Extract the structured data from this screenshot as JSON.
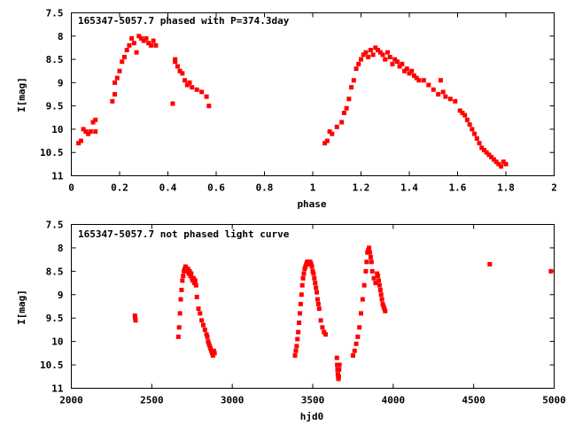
{
  "chart_data": [
    {
      "type": "scatter",
      "title": "165347-5057.7 phased with P=374.3day",
      "xlabel": "phase",
      "ylabel": "I[mag]",
      "xlim": [
        0,
        2
      ],
      "ylim": [
        11,
        7.5
      ],
      "y_inverted": true,
      "xticks": [
        "0",
        "0.2",
        "0.4",
        "0.6",
        "0.8",
        "1",
        "1.2",
        "1.4",
        "1.6",
        "1.8",
        "2"
      ],
      "yticks": [
        "7.5",
        "8",
        "8.5",
        "9",
        "9.5",
        "10",
        "10.5",
        "11"
      ],
      "marker_color": "#ff0000",
      "series": [
        {
          "x": [
            0.03,
            0.04,
            0.05,
            0.06,
            0.07,
            0.08,
            0.09,
            0.1,
            0.1,
            0.17,
            0.18,
            0.18,
            0.19,
            0.2,
            0.21,
            0.22,
            0.23,
            0.24,
            0.25,
            0.26,
            0.27,
            0.28,
            0.29,
            0.3,
            0.31,
            0.32,
            0.33,
            0.34,
            0.35,
            0.42,
            0.43,
            0.43,
            0.44,
            0.45,
            0.46,
            0.47,
            0.48,
            0.49,
            0.5,
            0.52,
            0.54,
            0.56,
            0.57,
            1.05,
            1.06,
            1.07,
            1.08,
            1.1,
            1.12,
            1.13,
            1.14,
            1.15,
            1.16,
            1.17,
            1.18,
            1.19,
            1.2,
            1.21,
            1.22,
            1.23,
            1.24,
            1.25,
            1.26,
            1.27,
            1.28,
            1.29,
            1.3,
            1.31,
            1.32,
            1.33,
            1.34,
            1.35,
            1.36,
            1.37,
            1.38,
            1.39,
            1.4,
            1.41,
            1.42,
            1.43,
            1.44,
            1.46,
            1.48,
            1.5,
            1.52,
            1.53,
            1.54,
            1.55,
            1.57,
            1.59,
            1.61,
            1.62,
            1.63,
            1.64,
            1.65,
            1.66,
            1.67,
            1.68,
            1.69,
            1.7,
            1.71,
            1.72,
            1.73,
            1.74,
            1.75,
            1.76,
            1.77,
            1.78,
            1.79,
            1.8
          ],
          "y": [
            10.3,
            10.25,
            10.0,
            10.05,
            10.1,
            10.05,
            9.85,
            9.8,
            10.05,
            9.4,
            9.25,
            9.0,
            8.9,
            8.75,
            8.55,
            8.45,
            8.3,
            8.2,
            8.05,
            8.15,
            8.35,
            8.0,
            8.05,
            8.1,
            8.05,
            8.15,
            8.2,
            8.1,
            8.2,
            9.45,
            8.5,
            8.55,
            8.65,
            8.75,
            8.8,
            8.95,
            9.05,
            9.0,
            9.1,
            9.15,
            9.2,
            9.3,
            9.5,
            10.3,
            10.25,
            10.05,
            10.1,
            9.95,
            9.85,
            9.65,
            9.55,
            9.35,
            9.1,
            8.95,
            8.7,
            8.6,
            8.5,
            8.4,
            8.35,
            8.45,
            8.3,
            8.4,
            8.25,
            8.3,
            8.35,
            8.4,
            8.5,
            8.35,
            8.45,
            8.6,
            8.5,
            8.55,
            8.65,
            8.6,
            8.75,
            8.7,
            8.8,
            8.75,
            8.85,
            8.9,
            8.95,
            8.95,
            9.05,
            9.15,
            9.25,
            8.95,
            9.2,
            9.3,
            9.35,
            9.4,
            9.6,
            9.65,
            9.7,
            9.8,
            9.9,
            10.0,
            10.1,
            10.2,
            10.3,
            10.4,
            10.45,
            10.5,
            10.55,
            10.6,
            10.65,
            10.7,
            10.75,
            10.8,
            10.7,
            10.75
          ]
        }
      ]
    },
    {
      "type": "scatter",
      "title": "165347-5057.7 not phased light curve",
      "xlabel": "hjd0",
      "ylabel": "I[mag]",
      "xlim": [
        2000,
        5000
      ],
      "ylim": [
        11,
        7.5
      ],
      "y_inverted": true,
      "xticks": [
        "2000",
        "2500",
        "3000",
        "3500",
        "4000",
        "4500",
        "5000"
      ],
      "yticks": [
        "7.5",
        "8",
        "8.5",
        "9",
        "9.5",
        "10",
        "10.5",
        "11"
      ],
      "marker_color": "#ff0000",
      "series": [
        {
          "x": [
            2395,
            2397,
            2399,
            2665,
            2670,
            2675,
            2680,
            2685,
            2690,
            2695,
            2700,
            2705,
            2710,
            2715,
            2720,
            2725,
            2730,
            2735,
            2740,
            2745,
            2750,
            2755,
            2760,
            2765,
            2770,
            2775,
            2780,
            2790,
            2800,
            2810,
            2820,
            2830,
            2840,
            2845,
            2850,
            2855,
            2860,
            2865,
            2870,
            2875,
            2880,
            2885,
            2890,
            3390,
            3395,
            3400,
            3405,
            3410,
            3415,
            3420,
            3425,
            3430,
            3435,
            3440,
            3445,
            3450,
            3455,
            3460,
            3465,
            3470,
            3475,
            3480,
            3485,
            3490,
            3495,
            3500,
            3505,
            3510,
            3515,
            3520,
            3525,
            3530,
            3535,
            3540,
            3550,
            3560,
            3570,
            3580,
            3650,
            3652,
            3654,
            3656,
            3658,
            3660,
            3662,
            3664,
            3666,
            3750,
            3760,
            3770,
            3780,
            3790,
            3800,
            3810,
            3820,
            3830,
            3835,
            3840,
            3845,
            3850,
            3855,
            3860,
            3865,
            3870,
            3880,
            3890,
            3900,
            3905,
            3910,
            3915,
            3920,
            3925,
            3930,
            3935,
            3940,
            3945,
            3950,
            4600,
            4980
          ],
          "y": [
            9.45,
            9.5,
            9.55,
            9.9,
            9.7,
            9.4,
            9.1,
            8.9,
            8.7,
            8.6,
            8.5,
            8.45,
            8.4,
            8.45,
            8.5,
            8.45,
            8.55,
            8.5,
            8.6,
            8.55,
            8.65,
            8.7,
            8.65,
            8.75,
            8.7,
            8.8,
            9.05,
            9.3,
            9.4,
            9.55,
            9.65,
            9.75,
            9.85,
            9.9,
            10.0,
            10.05,
            10.1,
            10.15,
            10.2,
            10.25,
            10.3,
            10.2,
            10.25,
            10.3,
            10.2,
            10.1,
            9.95,
            9.8,
            9.6,
            9.4,
            9.2,
            9.0,
            8.8,
            8.65,
            8.55,
            8.45,
            8.4,
            8.35,
            8.3,
            8.35,
            8.3,
            8.35,
            8.3,
            8.35,
            8.4,
            8.5,
            8.55,
            8.65,
            8.75,
            8.85,
            8.95,
            9.1,
            9.2,
            9.3,
            9.55,
            9.7,
            9.8,
            9.85,
            10.35,
            10.5,
            10.6,
            10.7,
            10.75,
            10.8,
            10.75,
            10.6,
            10.5,
            10.3,
            10.2,
            10.05,
            9.9,
            9.7,
            9.4,
            9.1,
            8.8,
            8.5,
            8.3,
            8.1,
            8.05,
            8.0,
            8.1,
            8.2,
            8.3,
            8.5,
            8.65,
            8.75,
            8.55,
            8.6,
            8.7,
            8.8,
            8.9,
            9.0,
            9.1,
            9.2,
            9.25,
            9.3,
            9.35,
            8.35,
            8.5
          ]
        }
      ]
    }
  ]
}
